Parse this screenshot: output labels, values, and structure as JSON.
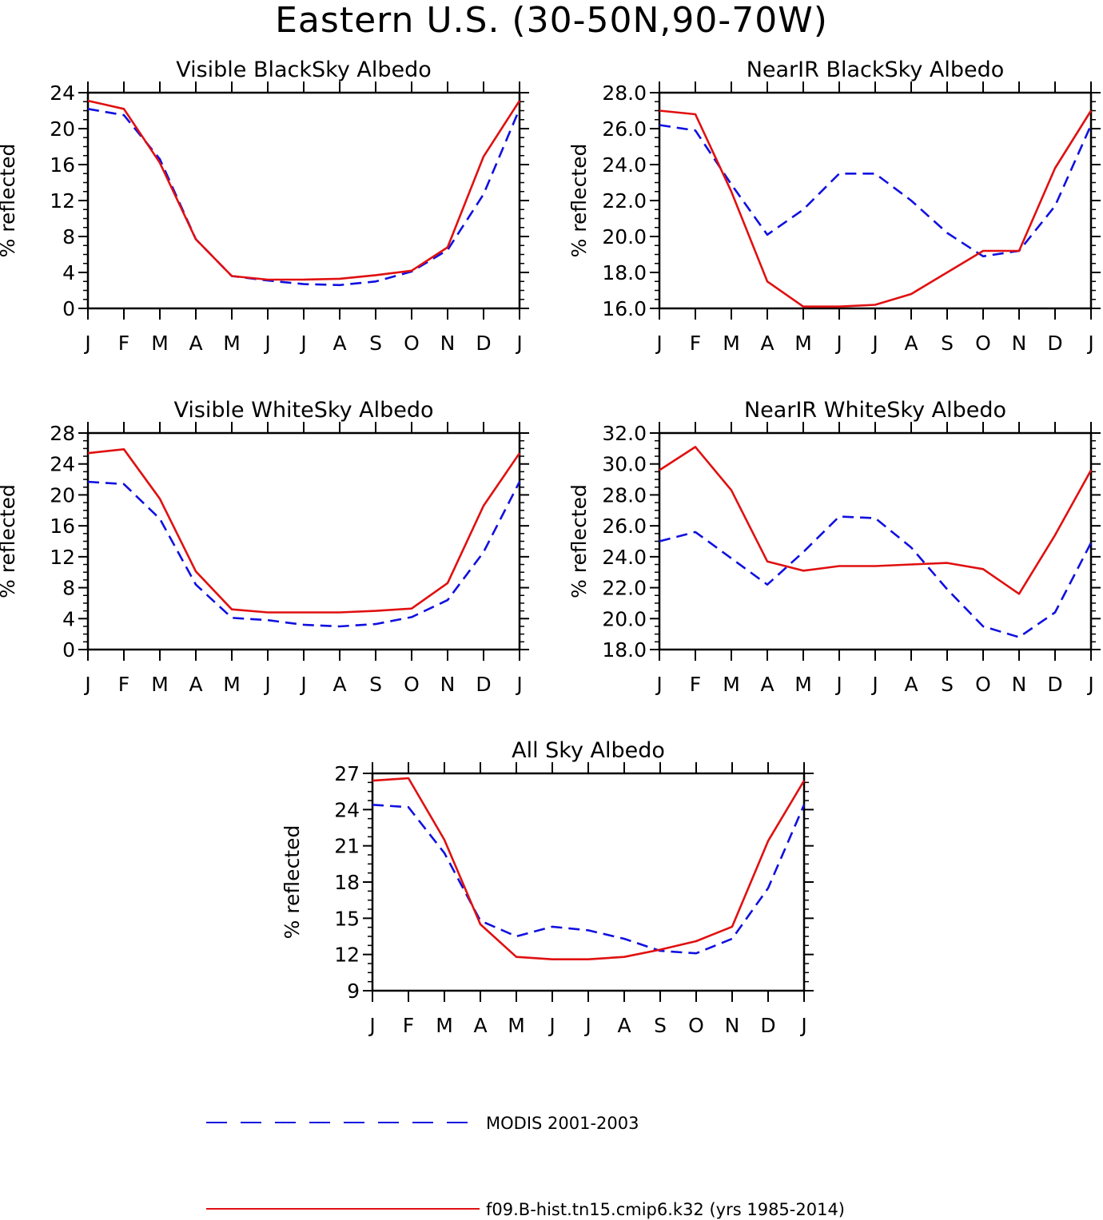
{
  "title": "Eastern U.S. (30-50N,90-70W)",
  "colors": {
    "modis": "#1010e0",
    "model": "#e01010",
    "axis": "#000000"
  },
  "legend": [
    {
      "label": "MODIS 2001-2003",
      "style": "dashed",
      "color": "#1010e0"
    },
    {
      "label": "f09.B-hist.tn15.cmip6.k32 (yrs 1985-2014)",
      "style": "solid",
      "color": "#e01010"
    }
  ],
  "chart_data": [
    {
      "type": "line",
      "title": "Visible BlackSky Albedo",
      "ylabel": "% reflected",
      "xlabel": "",
      "categories": [
        "J",
        "F",
        "M",
        "A",
        "M",
        "J",
        "J",
        "A",
        "S",
        "O",
        "N",
        "D",
        "J"
      ],
      "ylim": [
        0,
        24
      ],
      "yticks": [
        "0",
        "4",
        "8",
        "12",
        "16",
        "20",
        "24"
      ],
      "series": [
        {
          "name": "MODIS 2001-2003",
          "values": [
            22.2,
            21.5,
            16.6,
            7.7,
            3.6,
            3.1,
            2.7,
            2.6,
            3.0,
            4.1,
            6.5,
            12.7,
            22.2
          ]
        },
        {
          "name": "f09.B-hist.tn15.cmip6.k32 (yrs 1985-2014)",
          "values": [
            23.1,
            22.2,
            16.2,
            7.7,
            3.6,
            3.2,
            3.2,
            3.3,
            3.7,
            4.2,
            6.8,
            16.9,
            23.1
          ]
        }
      ]
    },
    {
      "type": "line",
      "title": "NearIR BlackSky Albedo",
      "ylabel": "% reflected",
      "xlabel": "",
      "categories": [
        "J",
        "F",
        "M",
        "A",
        "M",
        "J",
        "J",
        "A",
        "S",
        "O",
        "N",
        "D",
        "J"
      ],
      "ylim": [
        16,
        28
      ],
      "yticks": [
        "16.0",
        "18.0",
        "20.0",
        "22.0",
        "24.0",
        "26.0",
        "28.0"
      ],
      "series": [
        {
          "name": "MODIS 2001-2003",
          "values": [
            26.2,
            25.9,
            22.9,
            20.1,
            21.5,
            23.5,
            23.5,
            22.0,
            20.2,
            18.9,
            19.2,
            21.7,
            26.2
          ]
        },
        {
          "name": "f09.B-hist.tn15.cmip6.k32 (yrs 1985-2014)",
          "values": [
            27.0,
            26.8,
            22.5,
            17.5,
            16.1,
            16.1,
            16.2,
            16.8,
            18.0,
            19.2,
            19.2,
            23.8,
            27.0
          ]
        }
      ]
    },
    {
      "type": "line",
      "title": "Visible WhiteSky Albedo",
      "ylabel": "% reflected",
      "xlabel": "",
      "categories": [
        "J",
        "F",
        "M",
        "A",
        "M",
        "J",
        "J",
        "A",
        "S",
        "O",
        "N",
        "D",
        "J"
      ],
      "ylim": [
        0,
        28
      ],
      "yticks": [
        "0",
        "4",
        "8",
        "12",
        "16",
        "20",
        "24",
        "28"
      ],
      "series": [
        {
          "name": "MODIS 2001-2003",
          "values": [
            21.7,
            21.4,
            16.9,
            8.4,
            4.1,
            3.8,
            3.2,
            3.0,
            3.3,
            4.2,
            6.4,
            12.6,
            21.7
          ]
        },
        {
          "name": "f09.B-hist.tn15.cmip6.k32 (yrs 1985-2014)",
          "values": [
            25.4,
            25.9,
            19.5,
            10.1,
            5.2,
            4.8,
            4.8,
            4.8,
            5.0,
            5.3,
            8.6,
            18.6,
            25.4
          ]
        }
      ]
    },
    {
      "type": "line",
      "title": "NearIR WhiteSky Albedo",
      "ylabel": "% reflected",
      "xlabel": "",
      "categories": [
        "J",
        "F",
        "M",
        "A",
        "M",
        "J",
        "J",
        "A",
        "S",
        "O",
        "N",
        "D",
        "J"
      ],
      "ylim": [
        18,
        32
      ],
      "yticks": [
        "18.0",
        "20.0",
        "22.0",
        "24.0",
        "26.0",
        "28.0",
        "30.0",
        "32.0"
      ],
      "series": [
        {
          "name": "MODIS 2001-2003",
          "values": [
            25.0,
            25.6,
            23.9,
            22.2,
            24.3,
            26.6,
            26.5,
            24.6,
            21.9,
            19.5,
            18.8,
            20.4,
            24.9
          ]
        },
        {
          "name": "f09.B-hist.tn15.cmip6.k32 (yrs 1985-2014)",
          "values": [
            29.6,
            31.1,
            28.3,
            23.7,
            23.1,
            23.4,
            23.4,
            23.5,
            23.6,
            23.2,
            21.6,
            25.4,
            29.6
          ]
        }
      ]
    },
    {
      "type": "line",
      "title": "All Sky Albedo",
      "ylabel": "% reflected",
      "xlabel": "",
      "categories": [
        "J",
        "F",
        "M",
        "A",
        "M",
        "J",
        "J",
        "A",
        "S",
        "O",
        "N",
        "D",
        "J"
      ],
      "ylim": [
        9,
        27
      ],
      "yticks": [
        "9",
        "12",
        "15",
        "18",
        "21",
        "24",
        "27"
      ],
      "series": [
        {
          "name": "MODIS 2001-2003",
          "values": [
            24.4,
            24.2,
            20.4,
            14.8,
            13.5,
            14.3,
            14.0,
            13.3,
            12.3,
            12.1,
            13.3,
            17.5,
            24.4
          ]
        },
        {
          "name": "f09.B-hist.tn15.cmip6.k32 (yrs 1985-2014)",
          "values": [
            26.4,
            26.6,
            21.5,
            14.5,
            11.8,
            11.6,
            11.6,
            11.8,
            12.4,
            13.1,
            14.3,
            21.4,
            26.4
          ]
        }
      ]
    }
  ]
}
